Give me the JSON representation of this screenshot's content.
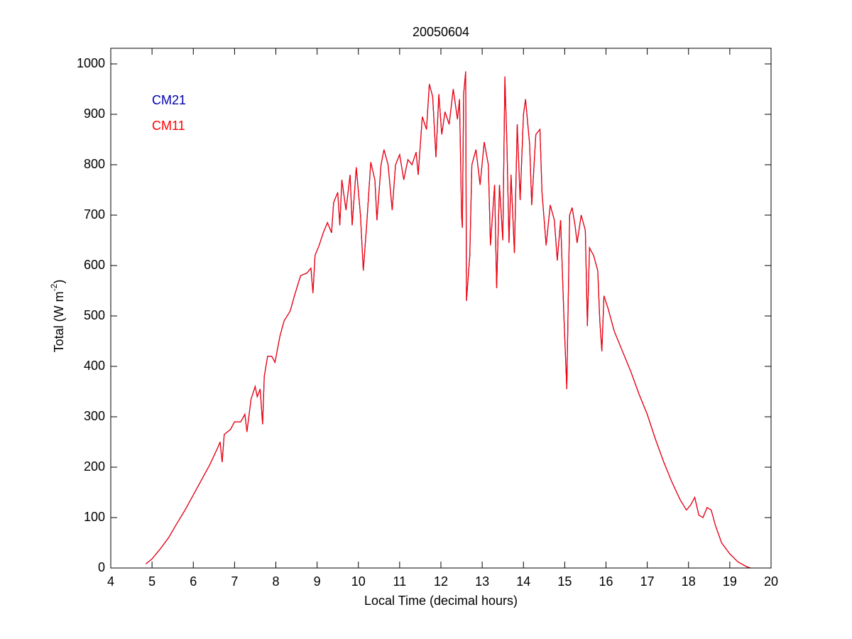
{
  "chart_data": {
    "type": "line",
    "title": "20050604",
    "xlabel": "Local Time (decimal hours)",
    "ylabel": [
      "Total (W m",
      "-2",
      ")"
    ],
    "x": [
      4.85,
      5.0,
      5.2,
      5.4,
      5.6,
      5.8,
      6.0,
      6.2,
      6.4,
      6.6,
      6.65,
      6.7,
      6.75,
      6.9,
      7.0,
      7.15,
      7.25,
      7.3,
      7.4,
      7.5,
      7.55,
      7.62,
      7.68,
      7.72,
      7.8,
      7.9,
      7.98,
      8.1,
      8.2,
      8.35,
      8.45,
      8.6,
      8.75,
      8.85,
      8.9,
      8.95,
      9.05,
      9.15,
      9.25,
      9.35,
      9.4,
      9.5,
      9.55,
      9.6,
      9.7,
      9.8,
      9.85,
      9.95,
      10.05,
      10.12,
      10.2,
      10.3,
      10.4,
      10.45,
      10.55,
      10.62,
      10.72,
      10.82,
      10.9,
      11.0,
      11.1,
      11.2,
      11.3,
      11.4,
      11.45,
      11.55,
      11.65,
      11.72,
      11.8,
      11.88,
      11.95,
      12.02,
      12.1,
      12.2,
      12.3,
      12.4,
      12.45,
      12.5,
      12.52,
      12.55,
      12.6,
      12.62,
      12.7,
      12.75,
      12.85,
      12.95,
      13.05,
      13.15,
      13.2,
      13.3,
      13.35,
      13.42,
      13.5,
      13.55,
      13.6,
      13.65,
      13.7,
      13.78,
      13.85,
      13.92,
      14.0,
      14.05,
      14.15,
      14.2,
      14.3,
      14.4,
      14.45,
      14.55,
      14.65,
      14.75,
      14.82,
      14.9,
      14.98,
      15.05,
      15.12,
      15.18,
      15.25,
      15.3,
      15.4,
      15.5,
      15.55,
      15.6,
      15.7,
      15.8,
      15.85,
      15.9,
      15.95,
      16.05,
      16.2,
      16.4,
      16.6,
      16.8,
      17.0,
      17.2,
      17.4,
      17.6,
      17.8,
      17.95,
      18.05,
      18.15,
      18.25,
      18.35,
      18.45,
      18.55,
      18.65,
      18.8,
      19.0,
      19.2,
      19.4,
      19.5
    ],
    "series": [
      {
        "name": "CM21",
        "color": "#0000b0",
        "values": [
          8,
          18,
          38,
          60,
          88,
          115,
          145,
          175,
          205,
          240,
          250,
          210,
          265,
          275,
          290,
          290,
          305,
          270,
          335,
          360,
          340,
          355,
          285,
          380,
          420,
          420,
          408,
          460,
          490,
          510,
          540,
          580,
          585,
          595,
          545,
          620,
          640,
          665,
          685,
          665,
          725,
          745,
          680,
          770,
          710,
          780,
          680,
          795,
          700,
          590,
          680,
          805,
          770,
          690,
          800,
          830,
          800,
          710,
          800,
          820,
          770,
          810,
          800,
          825,
          780,
          895,
          870,
          960,
          935,
          815,
          940,
          860,
          905,
          880,
          950,
          890,
          930,
          700,
          675,
          940,
          985,
          530,
          620,
          800,
          830,
          760,
          845,
          800,
          640,
          760,
          555,
          760,
          650,
          975,
          840,
          645,
          780,
          625,
          880,
          730,
          900,
          930,
          840,
          720,
          860,
          870,
          745,
          640,
          720,
          690,
          610,
          690,
          500,
          355,
          700,
          715,
          680,
          645,
          700,
          670,
          480,
          635,
          620,
          590,
          490,
          430,
          540,
          515,
          470,
          430,
          390,
          345,
          305,
          255,
          210,
          170,
          135,
          115,
          125,
          140,
          105,
          100,
          120,
          115,
          85,
          50,
          28,
          12,
          3,
          0
        ]
      },
      {
        "name": "CM11",
        "color": "#ff0000",
        "values": [
          8,
          18,
          38,
          60,
          88,
          115,
          145,
          175,
          205,
          240,
          250,
          210,
          265,
          275,
          290,
          290,
          305,
          270,
          335,
          360,
          340,
          355,
          285,
          380,
          420,
          420,
          408,
          460,
          490,
          510,
          540,
          580,
          585,
          595,
          545,
          620,
          640,
          665,
          685,
          665,
          725,
          745,
          680,
          770,
          710,
          780,
          680,
          795,
          700,
          590,
          680,
          805,
          770,
          690,
          800,
          830,
          800,
          710,
          800,
          820,
          770,
          810,
          800,
          825,
          780,
          895,
          870,
          960,
          935,
          815,
          940,
          860,
          905,
          880,
          950,
          890,
          930,
          700,
          675,
          940,
          985,
          530,
          620,
          800,
          830,
          760,
          845,
          800,
          640,
          760,
          555,
          760,
          650,
          975,
          840,
          645,
          780,
          625,
          880,
          730,
          900,
          930,
          840,
          720,
          860,
          870,
          745,
          640,
          720,
          690,
          610,
          690,
          500,
          355,
          700,
          715,
          680,
          645,
          700,
          670,
          480,
          635,
          620,
          590,
          490,
          430,
          540,
          515,
          470,
          430,
          390,
          345,
          305,
          255,
          210,
          170,
          135,
          115,
          125,
          140,
          105,
          100,
          120,
          115,
          85,
          50,
          28,
          12,
          3,
          0
        ]
      }
    ],
    "xlim": [
      4,
      20
    ],
    "xticks": [
      4,
      5,
      6,
      7,
      8,
      9,
      10,
      11,
      12,
      13,
      14,
      15,
      16,
      17,
      18,
      19,
      20
    ],
    "ylim": [
      0,
      1000
    ],
    "yticks": [
      0,
      100,
      200,
      300,
      400,
      500,
      600,
      700,
      800,
      900,
      1000
    ],
    "legend": "upper left",
    "grid": false
  }
}
